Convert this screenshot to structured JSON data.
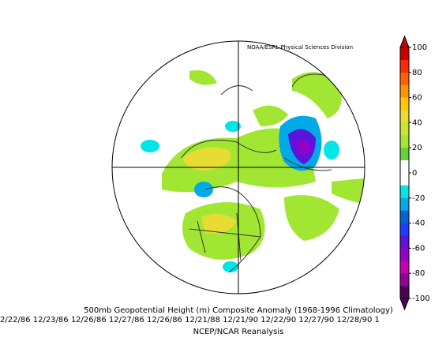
{
  "header": {
    "source": "NOAA/ESRL Physical Sciences Division"
  },
  "caption": {
    "title": "500mb Geopotential Height (m) Composite Anomaly (1968-1996 Climatology)",
    "dates": "2/22/86 12/23/86 12/26/86 12/27/86 12/26/86 12/21/88 12/21/90 12/22/90 12/27/90 12/28/90 1",
    "credit": "NCEP/NCAR Reanalysis"
  },
  "colorbar": {
    "range": [
      -100,
      100
    ],
    "ticks": [
      100,
      80,
      60,
      40,
      20,
      0,
      -20,
      -40,
      -60,
      -80,
      -100
    ],
    "colors": [
      "#c80000",
      "#ff2a00",
      "#ff6400",
      "#ff9600",
      "#ffc800",
      "#e6dc32",
      "#c8e632",
      "#a0e632",
      "#64d23c",
      "#ffffff",
      "#ffffff",
      "#00e6e6",
      "#00aae6",
      "#0064d2",
      "#1e3cff",
      "#5a14dc",
      "#9600c8",
      "#c800b4",
      "#960096",
      "#50005a"
    ]
  }
}
